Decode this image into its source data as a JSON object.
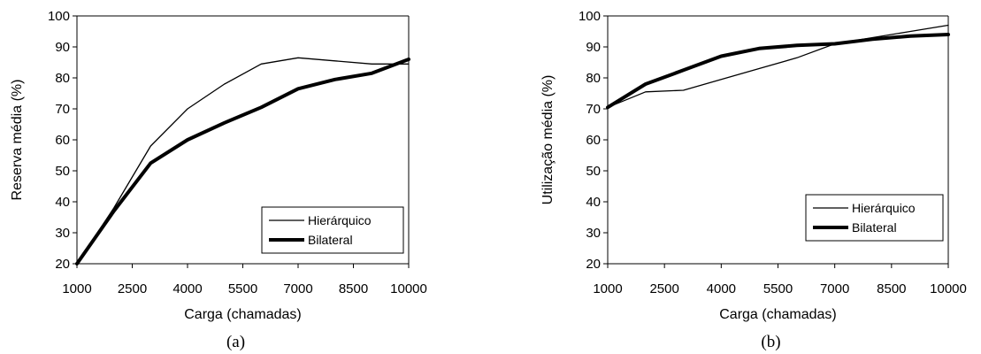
{
  "chart_data": [
    {
      "type": "line",
      "caption": "(a)",
      "xlabel": "Carga (chamadas)",
      "ylabel": "Reserva  média  (%)",
      "x_ticks": [
        "1000",
        "2500",
        "4000",
        "5500",
        "7000",
        "8500",
        "10000"
      ],
      "y_ticks": [
        "20",
        "30",
        "40",
        "50",
        "60",
        "70",
        "80",
        "90",
        "100"
      ],
      "xlim": [
        1000,
        10000
      ],
      "ylim": [
        20,
        100
      ],
      "legend_position": "bottom-right",
      "series": [
        {
          "name": "Hierárquico",
          "style": "thin",
          "x": [
            1000,
            2000,
            3000,
            4000,
            5000,
            6000,
            7000,
            8000,
            9000,
            10000
          ],
          "y": [
            20,
            38,
            58,
            70,
            78,
            84.5,
            86.5,
            85.5,
            84.5,
            84.5
          ]
        },
        {
          "name": "Bilateral",
          "style": "thick",
          "x": [
            1000,
            2000,
            3000,
            4000,
            5000,
            6000,
            7000,
            8000,
            9000,
            10000
          ],
          "y": [
            20,
            37,
            52.5,
            60,
            65.5,
            70.5,
            76.5,
            79.5,
            81.5,
            86
          ]
        }
      ]
    },
    {
      "type": "line",
      "caption": "(b)",
      "xlabel": "Carga (chamadas)",
      "ylabel": "Utilização  média  (%)",
      "x_ticks": [
        "1000",
        "2500",
        "4000",
        "5500",
        "7000",
        "8500",
        "10000"
      ],
      "y_ticks": [
        "20",
        "30",
        "40",
        "50",
        "60",
        "70",
        "80",
        "90",
        "100"
      ],
      "xlim": [
        1000,
        10000
      ],
      "ylim": [
        20,
        100
      ],
      "legend_position": "bottom-right",
      "series": [
        {
          "name": "Hierárquico",
          "style": "thin",
          "x": [
            1000,
            2000,
            3000,
            4000,
            5000,
            6000,
            7000,
            8000,
            9000,
            10000
          ],
          "y": [
            70.5,
            75.5,
            76,
            79.5,
            83,
            86.5,
            91,
            93,
            95,
            97
          ]
        },
        {
          "name": "Bilateral",
          "style": "thick",
          "x": [
            1000,
            2000,
            3000,
            4000,
            5000,
            6000,
            7000,
            8000,
            9000,
            10000
          ],
          "y": [
            70.5,
            78,
            82.5,
            87,
            89.5,
            90.5,
            91,
            92.5,
            93.5,
            94
          ]
        }
      ]
    }
  ]
}
